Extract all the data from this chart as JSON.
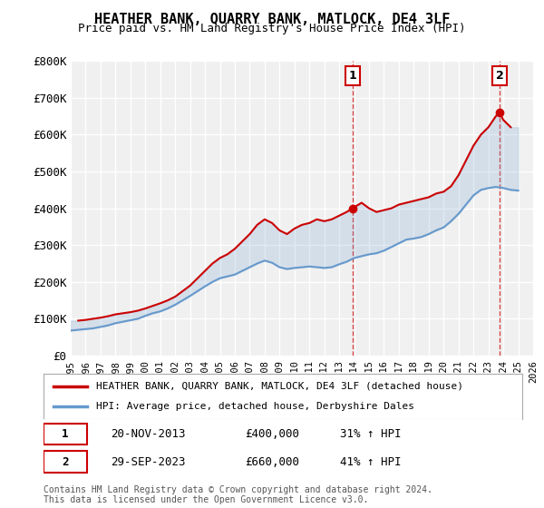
{
  "title": "HEATHER BANK, QUARRY BANK, MATLOCK, DE4 3LF",
  "subtitle": "Price paid vs. HM Land Registry's House Price Index (HPI)",
  "ylabel_ticks": [
    "£0",
    "£100K",
    "£200K",
    "£300K",
    "£400K",
    "£500K",
    "£600K",
    "£700K",
    "£800K"
  ],
  "ytick_vals": [
    0,
    100000,
    200000,
    300000,
    400000,
    500000,
    600000,
    700000,
    800000
  ],
  "ylim": [
    0,
    800000
  ],
  "xlim_start": 1995,
  "xlim_end": 2026,
  "background_color": "#ffffff",
  "plot_bg_color": "#f0f0f0",
  "grid_color": "#ffffff",
  "red_line_color": "#cc0000",
  "blue_line_color": "#6699cc",
  "annotation_fill": "#ffe0e0",
  "annotation_border": "#cc0000",
  "legend_label_red": "HEATHER BANK, QUARRY BANK, MATLOCK, DE4 3LF (detached house)",
  "legend_label_blue": "HPI: Average price, detached house, Derbyshire Dales",
  "point1_label": "1",
  "point1_date": "20-NOV-2013",
  "point1_price": "£400,000",
  "point1_hpi": "31% ↑ HPI",
  "point1_x": 2013.9,
  "point1_y": 400000,
  "point2_label": "2",
  "point2_date": "29-SEP-2023",
  "point2_price": "£660,000",
  "point2_hpi": "41% ↑ HPI",
  "point2_x": 2023.75,
  "point2_y": 660000,
  "footer": "Contains HM Land Registry data © Crown copyright and database right 2024.\nThis data is licensed under the Open Government Licence v3.0.",
  "red_x": [
    1995.5,
    1996.0,
    1996.5,
    1997.0,
    1997.5,
    1998.0,
    1998.5,
    1999.0,
    1999.5,
    2000.0,
    2000.5,
    2001.0,
    2001.5,
    2002.0,
    2002.5,
    2003.0,
    2003.5,
    2004.0,
    2004.5,
    2005.0,
    2005.5,
    2006.0,
    2006.5,
    2007.0,
    2007.5,
    2008.0,
    2008.5,
    2009.0,
    2009.5,
    2010.0,
    2010.5,
    2011.0,
    2011.5,
    2012.0,
    2012.5,
    2013.0,
    2013.5,
    2013.9,
    2014.5,
    2015.0,
    2015.5,
    2016.0,
    2016.5,
    2017.0,
    2017.5,
    2018.0,
    2018.5,
    2019.0,
    2019.5,
    2020.0,
    2020.5,
    2021.0,
    2021.5,
    2022.0,
    2022.5,
    2023.0,
    2023.5,
    2023.75,
    2024.0,
    2024.5
  ],
  "red_y": [
    95000,
    97000,
    100000,
    103000,
    107000,
    112000,
    115000,
    118000,
    122000,
    128000,
    135000,
    142000,
    150000,
    160000,
    175000,
    190000,
    210000,
    230000,
    250000,
    265000,
    275000,
    290000,
    310000,
    330000,
    355000,
    370000,
    360000,
    340000,
    330000,
    345000,
    355000,
    360000,
    370000,
    365000,
    370000,
    380000,
    390000,
    400000,
    415000,
    400000,
    390000,
    395000,
    400000,
    410000,
    415000,
    420000,
    425000,
    430000,
    440000,
    445000,
    460000,
    490000,
    530000,
    570000,
    600000,
    620000,
    650000,
    660000,
    640000,
    620000
  ],
  "blue_x": [
    1995.0,
    1995.5,
    1996.0,
    1996.5,
    1997.0,
    1997.5,
    1998.0,
    1998.5,
    1999.0,
    1999.5,
    2000.0,
    2000.5,
    2001.0,
    2001.5,
    2002.0,
    2002.5,
    2003.0,
    2003.5,
    2004.0,
    2004.5,
    2005.0,
    2005.5,
    2006.0,
    2006.5,
    2007.0,
    2007.5,
    2008.0,
    2008.5,
    2009.0,
    2009.5,
    2010.0,
    2010.5,
    2011.0,
    2011.5,
    2012.0,
    2012.5,
    2013.0,
    2013.5,
    2014.0,
    2014.5,
    2015.0,
    2015.5,
    2016.0,
    2016.5,
    2017.0,
    2017.5,
    2018.0,
    2018.5,
    2019.0,
    2019.5,
    2020.0,
    2020.5,
    2021.0,
    2021.5,
    2022.0,
    2022.5,
    2023.0,
    2023.5,
    2024.0,
    2024.5,
    2025.0
  ],
  "blue_y": [
    68000,
    70000,
    72000,
    74000,
    78000,
    82000,
    88000,
    92000,
    96000,
    100000,
    108000,
    115000,
    120000,
    128000,
    138000,
    150000,
    162000,
    175000,
    188000,
    200000,
    210000,
    215000,
    220000,
    230000,
    240000,
    250000,
    258000,
    252000,
    240000,
    235000,
    238000,
    240000,
    242000,
    240000,
    238000,
    240000,
    248000,
    255000,
    265000,
    270000,
    275000,
    278000,
    285000,
    295000,
    305000,
    315000,
    318000,
    322000,
    330000,
    340000,
    348000,
    365000,
    385000,
    410000,
    435000,
    450000,
    455000,
    458000,
    455000,
    450000,
    448000
  ]
}
